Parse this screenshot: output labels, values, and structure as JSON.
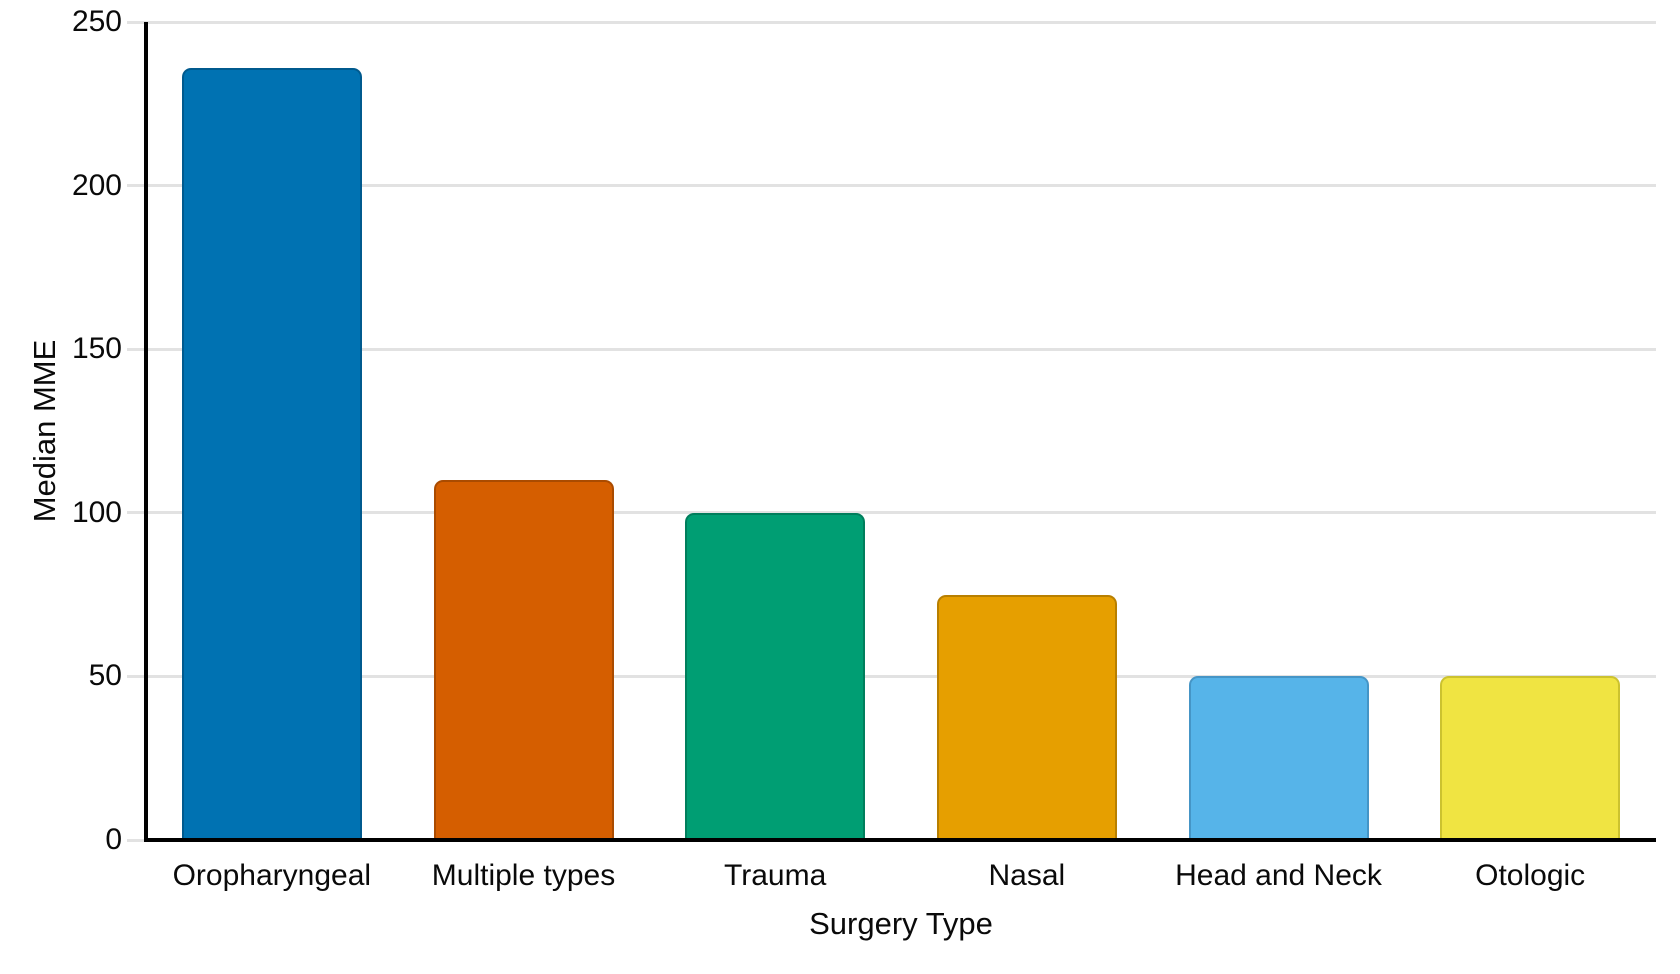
{
  "chart_data": {
    "type": "bar",
    "title": "",
    "xlabel": "Surgery Type",
    "ylabel": "Median MME",
    "categories": [
      "Oropharyngeal",
      "Multiple types",
      "Trauma",
      "Nasal",
      "Head and Neck",
      "Otologic"
    ],
    "values": [
      236,
      110,
      100,
      75,
      50,
      50
    ],
    "bar_colors": [
      "#0072B2",
      "#D55E00",
      "#009E73",
      "#E69F00",
      "#56B4E9",
      "#F0E442"
    ],
    "bar_stroke_colors": [
      "#005A8E",
      "#AA4B00",
      "#007E5C",
      "#B87F00",
      "#4595C6",
      "#CCC22F"
    ],
    "ylim": [
      0,
      250
    ],
    "yticks": [
      0,
      50,
      100,
      150,
      200,
      250
    ],
    "grid": "horizontal gridlines on",
    "legend": "none",
    "background_color": "#ffffff",
    "axis_color": "#000000",
    "gridline_color": "#e2e2e2",
    "label_color": "#0a0a0a"
  }
}
